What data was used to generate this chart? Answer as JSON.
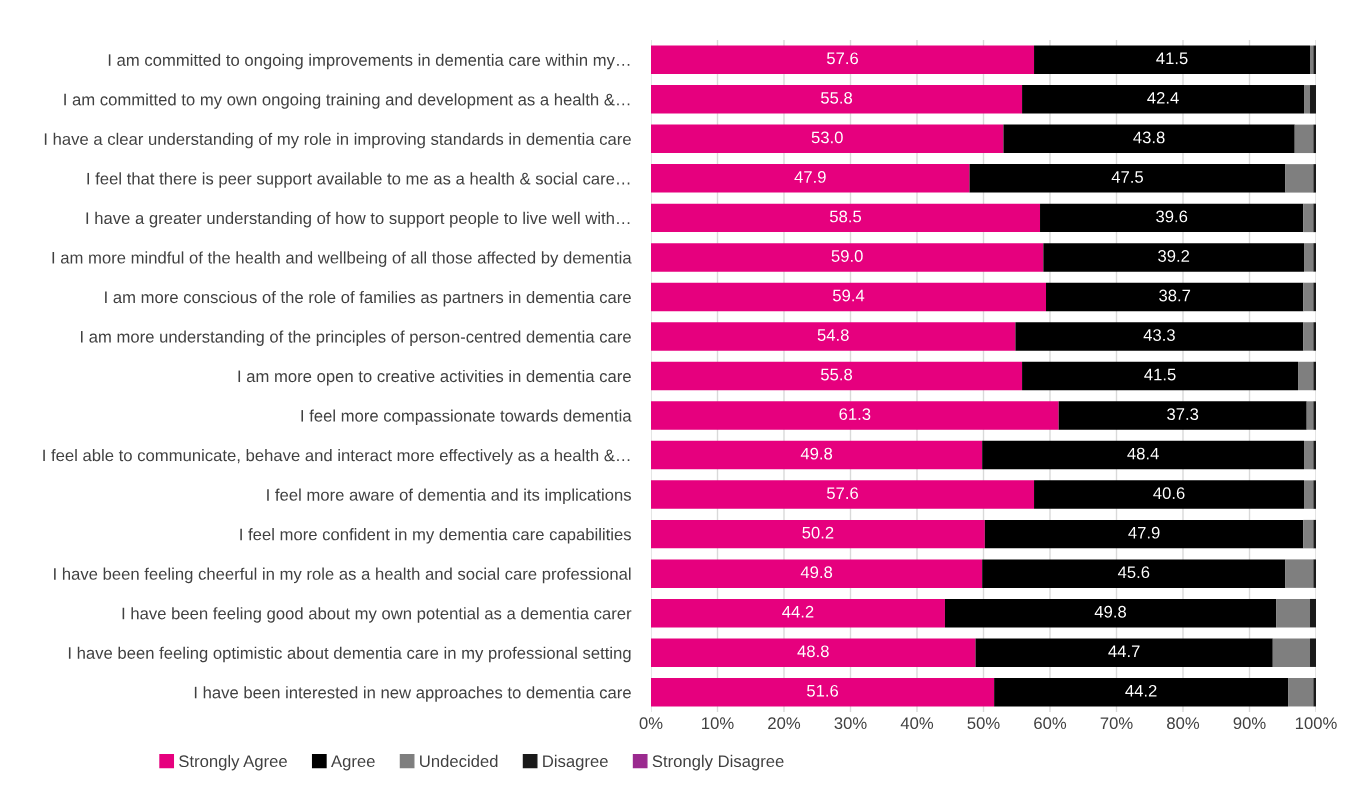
{
  "chart_data": {
    "type": "bar",
    "orientation": "horizontal",
    "stacked": true,
    "grid": "x",
    "legend": "bottom",
    "categories": [
      "I am committed to ongoing improvements in dementia care within my…",
      "I am committed to my own ongoing training and development as a health &…",
      "I have a clear understanding of my role in improving standards in dementia care",
      "I feel that there is peer support available to me as a health & social care…",
      "I have a greater understanding of how to support people to live well with…",
      "I am more mindful of the health and wellbeing of all those affected by dementia",
      "I am more conscious of the role of families as partners in dementia care",
      "I am more understanding of the principles of person-centred dementia care",
      "I am more open to creative activities in dementia care",
      "I feel more compassionate towards dementia",
      "I feel able to communicate, behave and interact more effectively as a health &…",
      "I feel more aware of dementia and its implications",
      "I feel more confident in my dementia care capabilities",
      "I have been feeling cheerful in my role as a health and social care professional",
      "I have been feeling good about my own potential as a dementia carer",
      "I have been feeling optimistic about dementia care in my professional setting",
      "I have been interested in new approaches to dementia care"
    ],
    "xlim": [
      0,
      100
    ],
    "xticks": [
      {
        "value": 0,
        "label": "0%"
      },
      {
        "value": 10,
        "label": "10%"
      },
      {
        "value": 20,
        "label": "20%"
      },
      {
        "value": 30,
        "label": "30%"
      },
      {
        "value": 40,
        "label": "40%"
      },
      {
        "value": 50,
        "label": "50%"
      },
      {
        "value": 60,
        "label": "60%"
      },
      {
        "value": 70,
        "label": "70%"
      },
      {
        "value": 80,
        "label": "80%"
      },
      {
        "value": 90,
        "label": "90%"
      },
      {
        "value": 100,
        "label": "100%"
      }
    ],
    "series": [
      {
        "name": "Strongly Agree",
        "color": "#e6007e",
        "values": [
          57.6,
          55.8,
          53.0,
          47.9,
          58.5,
          59.0,
          59.4,
          54.8,
          55.8,
          61.3,
          49.8,
          57.6,
          50.2,
          49.8,
          44.2,
          48.8,
          51.6
        ],
        "value_labels": [
          "57.6",
          "55.8",
          "53.0",
          "47.9",
          "58.5",
          "59.0",
          "59.4",
          "54.8",
          "55.8",
          "61.3",
          "49.8",
          "57.6",
          "50.2",
          "49.8",
          "44.2",
          "48.8",
          "51.6"
        ]
      },
      {
        "name": "Agree",
        "color": "#000000",
        "values": [
          41.5,
          42.4,
          43.8,
          47.5,
          39.6,
          39.2,
          38.7,
          43.3,
          41.5,
          37.3,
          48.4,
          40.6,
          47.9,
          45.6,
          49.8,
          44.7,
          44.2
        ],
        "value_labels": [
          "41.5",
          "42.4",
          "43.8",
          "47.5",
          "39.6",
          "39.2",
          "38.7",
          "43.3",
          "41.5",
          "37.3",
          "48.4",
          "40.6",
          "47.9",
          "45.6",
          "49.8",
          "44.7",
          "44.2"
        ]
      },
      {
        "name": "Undecided",
        "color": "#7f7f7f",
        "values": [
          0.5,
          0.9,
          2.8,
          4.2,
          1.5,
          1.4,
          1.5,
          1.5,
          2.3,
          1.0,
          1.4,
          1.4,
          1.5,
          4.2,
          5.1,
          5.6,
          3.8
        ]
      },
      {
        "name": "Disagree",
        "color": "#1a1a1a",
        "values": [
          0.4,
          0.9,
          0.4,
          0.4,
          0.4,
          0.4,
          0.4,
          0.4,
          0.4,
          0.4,
          0.4,
          0.4,
          0.4,
          0.4,
          0.9,
          0.9,
          0.4
        ]
      },
      {
        "name": "Strongly Disagree",
        "color": "#9b2a8f",
        "values": [
          0,
          0,
          0,
          0,
          0,
          0,
          0,
          0,
          0,
          0,
          0,
          0,
          0,
          0,
          0,
          0,
          0
        ]
      }
    ]
  }
}
